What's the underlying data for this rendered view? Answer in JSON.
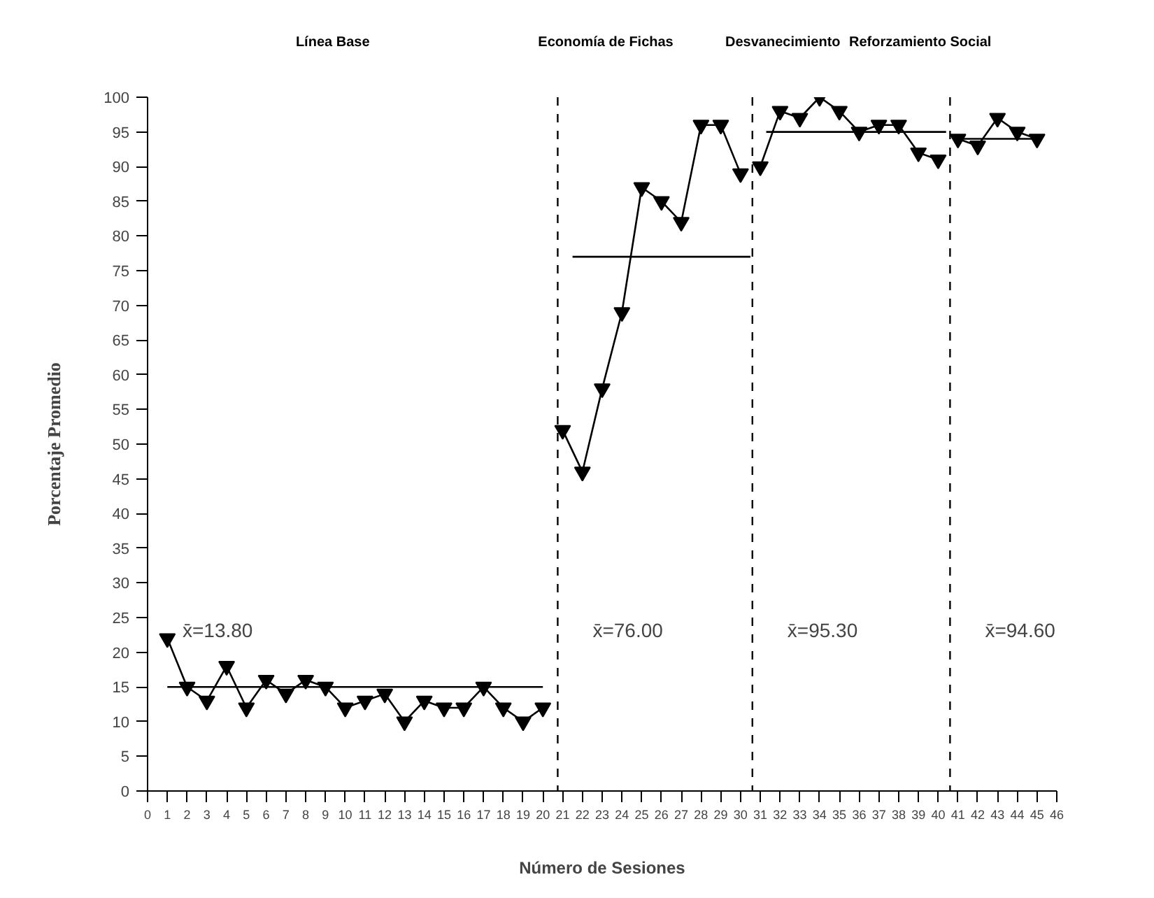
{
  "chart_data": {
    "type": "line",
    "xlabel": "Número de Sesiones",
    "ylabel": "Porcentaje Promedio",
    "xlim": [
      0,
      46
    ],
    "ylim": [
      0,
      100
    ],
    "xticks": [
      0,
      1,
      2,
      3,
      4,
      5,
      6,
      7,
      8,
      9,
      10,
      11,
      12,
      13,
      14,
      15,
      16,
      17,
      18,
      19,
      20,
      21,
      22,
      23,
      24,
      25,
      26,
      27,
      28,
      29,
      30,
      31,
      32,
      33,
      34,
      35,
      36,
      37,
      38,
      39,
      40,
      41,
      42,
      43,
      44,
      45,
      46
    ],
    "yticks": [
      0,
      5,
      10,
      15,
      20,
      25,
      30,
      35,
      40,
      45,
      50,
      55,
      60,
      65,
      70,
      75,
      80,
      85,
      90,
      95,
      100
    ],
    "grid": false,
    "marker": "triangle",
    "line_style": "solid",
    "series": [
      {
        "color": "#000000",
        "x": [
          1,
          2,
          3,
          4,
          5,
          6,
          7,
          8,
          9,
          10,
          11,
          12,
          13,
          14,
          15,
          16,
          17,
          18,
          19,
          20
        ],
        "values": [
          22,
          15,
          13,
          18,
          12,
          16,
          14,
          16,
          15,
          12,
          13,
          14,
          10,
          13,
          12,
          12,
          15,
          12,
          10,
          12
        ]
      },
      {
        "color": "#000000",
        "x": [
          21,
          22,
          23,
          24,
          25,
          26,
          27,
          28,
          29,
          30
        ],
        "values": [
          52,
          46,
          58,
          69,
          87,
          85,
          82,
          96,
          96,
          89
        ]
      },
      {
        "color": "#000000",
        "x": [
          31,
          32,
          33,
          34,
          35,
          36,
          37,
          38,
          39,
          40
        ],
        "values": [
          90,
          98,
          97,
          100,
          98,
          95,
          96,
          96,
          92,
          91
        ]
      },
      {
        "color": "#000000",
        "x": [
          41,
          42,
          43,
          44,
          45
        ],
        "values": [
          94,
          93,
          97,
          95,
          94
        ]
      },
      {
        "color": "#000000",
        "marker": "none",
        "x": [
          1,
          20
        ],
        "values": [
          15,
          15
        ]
      },
      {
        "color": "#000000",
        "marker": "none",
        "x": [
          21.5,
          30.5
        ],
        "values": [
          77,
          77
        ]
      },
      {
        "color": "#000000",
        "marker": "none",
        "x": [
          31.3,
          40.4
        ],
        "values": [
          95,
          95
        ]
      },
      {
        "color": "#000000",
        "marker": "none",
        "x": [
          41.2,
          45.2
        ],
        "values": [
          94,
          94
        ]
      }
    ],
    "ref_lines": [
      {
        "axis": "x",
        "value": 20.75,
        "color": "#000000",
        "line_style": "dashed"
      },
      {
        "axis": "x",
        "value": 30.6,
        "color": "#000000",
        "line_style": "dashed"
      },
      {
        "axis": "x",
        "value": 40.6,
        "color": "#000000",
        "line_style": "dashed"
      }
    ],
    "annotations": [
      "Línea Base",
      "Economía de Fichas",
      "Desvanecimiento",
      "Reforzamiento Social",
      "x̄=13.80",
      "x̄=76.00",
      "x̄=95.30",
      "x̄=94.60"
    ]
  }
}
